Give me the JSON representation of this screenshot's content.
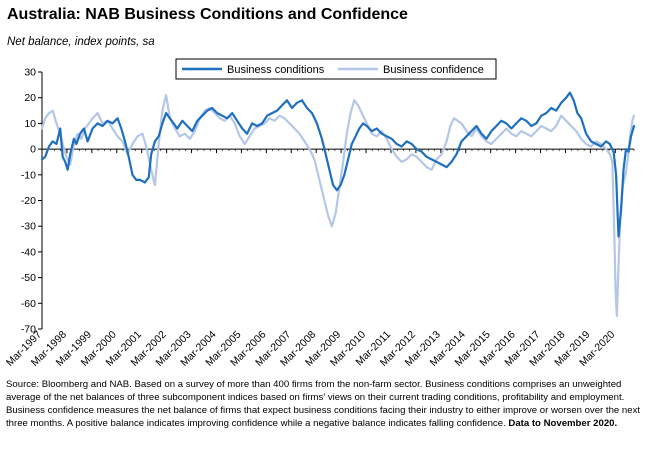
{
  "title": "Australia: NAB Business Conditions and Confidence",
  "subtitle": "Net balance, index points, sa",
  "source": {
    "text": "Source: Bloomberg and NAB. Based on a survey of more than 400 firms from the non-farm sector.  Business conditions comprises an unweighted average of the net balances of three subcomponent indices based on firms' views on their current trading conditions, profitability and employment. Business confidence measures the net balance of firms that expect business conditions facing their industry to either improve or worsen over the next three months.  A positive balance indicates improving confidence while a negative balance indicates falling confidence.",
    "bold": "Data to November 2020."
  },
  "colors": {
    "conditions": "#1f6fbf",
    "confidence": "#b4c7e7",
    "axis": "#000000",
    "gridline": "#000000"
  },
  "chart_data": {
    "type": "line",
    "title": "Australia: NAB Business Conditions and Confidence",
    "ylabel": "Net balance, index points, sa",
    "ylim": [
      -70,
      30
    ],
    "yticks": [
      30,
      20,
      10,
      0,
      -10,
      -20,
      -30,
      -40,
      -50,
      -60,
      -70
    ],
    "xlim": [
      1997.17,
      2020.92
    ],
    "xticks": [
      "Mar-1997",
      "Mar-1998",
      "Mar-1999",
      "Mar-2000",
      "Mar-2001",
      "Mar-2002",
      "Mar-2003",
      "Mar-2004",
      "Mar-2005",
      "Mar-2006",
      "Mar-2007",
      "Mar-2008",
      "Mar-2009",
      "Mar-2010",
      "Mar-2011",
      "Mar-2012",
      "Mar-2013",
      "Mar-2014",
      "Mar-2015",
      "Mar-2016",
      "Mar-2017",
      "Mar-2018",
      "Mar-2019",
      "Mar-2020"
    ],
    "legend_position": "top-center",
    "grid": false,
    "series": [
      {
        "name": "Business conditions",
        "points": [
          [
            1997.17,
            -4
          ],
          [
            1997.3,
            -3
          ],
          [
            1997.45,
            1
          ],
          [
            1997.6,
            3
          ],
          [
            1997.75,
            2
          ],
          [
            1997.9,
            8
          ],
          [
            1998.0,
            -3
          ],
          [
            1998.1,
            -5
          ],
          [
            1998.2,
            -8
          ],
          [
            1998.3,
            -2
          ],
          [
            1998.45,
            4
          ],
          [
            1998.55,
            2
          ],
          [
            1998.7,
            6
          ],
          [
            1998.85,
            8
          ],
          [
            1999.0,
            3
          ],
          [
            1999.2,
            8
          ],
          [
            1999.4,
            10
          ],
          [
            1999.6,
            9
          ],
          [
            1999.8,
            11
          ],
          [
            2000.0,
            10
          ],
          [
            2000.2,
            12
          ],
          [
            2000.35,
            8
          ],
          [
            2000.5,
            3
          ],
          [
            2000.65,
            -3
          ],
          [
            2000.8,
            -10
          ],
          [
            2000.95,
            -12
          ],
          [
            2001.1,
            -12
          ],
          [
            2001.3,
            -13
          ],
          [
            2001.45,
            -11
          ],
          [
            2001.55,
            -2
          ],
          [
            2001.7,
            3
          ],
          [
            2001.85,
            5
          ],
          [
            2002.0,
            10
          ],
          [
            2002.15,
            14
          ],
          [
            2002.3,
            12
          ],
          [
            2002.45,
            10
          ],
          [
            2002.6,
            8
          ],
          [
            2002.8,
            11
          ],
          [
            2003.0,
            9
          ],
          [
            2003.2,
            7
          ],
          [
            2003.4,
            11
          ],
          [
            2003.6,
            13
          ],
          [
            2003.8,
            15
          ],
          [
            2004.0,
            16
          ],
          [
            2004.2,
            14
          ],
          [
            2004.4,
            13
          ],
          [
            2004.6,
            12
          ],
          [
            2004.8,
            14
          ],
          [
            2005.0,
            11
          ],
          [
            2005.2,
            8
          ],
          [
            2005.4,
            6
          ],
          [
            2005.6,
            10
          ],
          [
            2005.8,
            9
          ],
          [
            2006.0,
            10
          ],
          [
            2006.2,
            13
          ],
          [
            2006.4,
            14
          ],
          [
            2006.6,
            15
          ],
          [
            2006.8,
            17
          ],
          [
            2007.0,
            19
          ],
          [
            2007.2,
            16
          ],
          [
            2007.4,
            18
          ],
          [
            2007.6,
            19
          ],
          [
            2007.8,
            16
          ],
          [
            2008.0,
            14
          ],
          [
            2008.2,
            10
          ],
          [
            2008.4,
            4
          ],
          [
            2008.55,
            -2
          ],
          [
            2008.7,
            -8
          ],
          [
            2008.85,
            -14
          ],
          [
            2009.0,
            -16
          ],
          [
            2009.15,
            -14
          ],
          [
            2009.3,
            -10
          ],
          [
            2009.45,
            -4
          ],
          [
            2009.6,
            2
          ],
          [
            2009.75,
            5
          ],
          [
            2009.9,
            8
          ],
          [
            2010.05,
            10
          ],
          [
            2010.2,
            9
          ],
          [
            2010.4,
            7
          ],
          [
            2010.6,
            8
          ],
          [
            2010.8,
            6
          ],
          [
            2011.0,
            5
          ],
          [
            2011.2,
            4
          ],
          [
            2011.4,
            2
          ],
          [
            2011.6,
            1
          ],
          [
            2011.8,
            3
          ],
          [
            2012.0,
            2
          ],
          [
            2012.2,
            0
          ],
          [
            2012.4,
            -1
          ],
          [
            2012.6,
            -3
          ],
          [
            2012.8,
            -4
          ],
          [
            2013.0,
            -5
          ],
          [
            2013.2,
            -6
          ],
          [
            2013.4,
            -7
          ],
          [
            2013.6,
            -5
          ],
          [
            2013.8,
            -2
          ],
          [
            2014.0,
            3
          ],
          [
            2014.2,
            5
          ],
          [
            2014.4,
            7
          ],
          [
            2014.6,
            9
          ],
          [
            2014.8,
            6
          ],
          [
            2015.0,
            4
          ],
          [
            2015.2,
            7
          ],
          [
            2015.4,
            9
          ],
          [
            2015.6,
            11
          ],
          [
            2015.8,
            10
          ],
          [
            2016.0,
            8
          ],
          [
            2016.2,
            10
          ],
          [
            2016.4,
            12
          ],
          [
            2016.6,
            11
          ],
          [
            2016.8,
            9
          ],
          [
            2017.0,
            10
          ],
          [
            2017.2,
            13
          ],
          [
            2017.4,
            14
          ],
          [
            2017.6,
            16
          ],
          [
            2017.8,
            15
          ],
          [
            2018.0,
            18
          ],
          [
            2018.2,
            20
          ],
          [
            2018.35,
            22
          ],
          [
            2018.5,
            19
          ],
          [
            2018.65,
            14
          ],
          [
            2018.8,
            12
          ],
          [
            2019.0,
            6
          ],
          [
            2019.2,
            3
          ],
          [
            2019.4,
            2
          ],
          [
            2019.6,
            1
          ],
          [
            2019.8,
            3
          ],
          [
            2019.95,
            2
          ],
          [
            2020.1,
            -1
          ],
          [
            2020.2,
            -10
          ],
          [
            2020.3,
            -34
          ],
          [
            2020.4,
            -24
          ],
          [
            2020.5,
            -8
          ],
          [
            2020.6,
            0
          ],
          [
            2020.7,
            -1
          ],
          [
            2020.8,
            5
          ],
          [
            2020.92,
            9
          ]
        ]
      },
      {
        "name": "Business confidence",
        "points": [
          [
            1997.17,
            8
          ],
          [
            1997.3,
            12
          ],
          [
            1997.45,
            14
          ],
          [
            1997.6,
            15
          ],
          [
            1997.75,
            10
          ],
          [
            1997.9,
            6
          ],
          [
            1998.0,
            2
          ],
          [
            1998.15,
            -3
          ],
          [
            1998.3,
            -6
          ],
          [
            1998.45,
            2
          ],
          [
            1998.6,
            6
          ],
          [
            1998.75,
            4
          ],
          [
            1998.9,
            8
          ],
          [
            1999.05,
            10
          ],
          [
            1999.2,
            12
          ],
          [
            1999.4,
            14
          ],
          [
            1999.6,
            10
          ],
          [
            1999.8,
            11
          ],
          [
            2000.0,
            8
          ],
          [
            2000.2,
            5
          ],
          [
            2000.4,
            3
          ],
          [
            2000.6,
            -2
          ],
          [
            2000.8,
            2
          ],
          [
            2001.0,
            5
          ],
          [
            2001.2,
            6
          ],
          [
            2001.35,
            1
          ],
          [
            2001.55,
            -8
          ],
          [
            2001.7,
            -14
          ],
          [
            2001.85,
            2
          ],
          [
            2002.0,
            15
          ],
          [
            2002.15,
            21
          ],
          [
            2002.3,
            12
          ],
          [
            2002.5,
            8
          ],
          [
            2002.7,
            5
          ],
          [
            2002.9,
            6
          ],
          [
            2003.1,
            4
          ],
          [
            2003.3,
            7
          ],
          [
            2003.5,
            12
          ],
          [
            2003.7,
            15
          ],
          [
            2003.9,
            16
          ],
          [
            2004.1,
            14
          ],
          [
            2004.3,
            12
          ],
          [
            2004.5,
            11
          ],
          [
            2004.7,
            13
          ],
          [
            2004.9,
            10
          ],
          [
            2005.1,
            5
          ],
          [
            2005.3,
            2
          ],
          [
            2005.5,
            5
          ],
          [
            2005.7,
            8
          ],
          [
            2005.9,
            9
          ],
          [
            2006.1,
            10
          ],
          [
            2006.3,
            12
          ],
          [
            2006.5,
            11
          ],
          [
            2006.7,
            13
          ],
          [
            2006.9,
            12
          ],
          [
            2007.1,
            10
          ],
          [
            2007.3,
            8
          ],
          [
            2007.5,
            6
          ],
          [
            2007.7,
            3
          ],
          [
            2007.9,
            0
          ],
          [
            2008.1,
            -4
          ],
          [
            2008.3,
            -12
          ],
          [
            2008.5,
            -20
          ],
          [
            2008.65,
            -26
          ],
          [
            2008.8,
            -30
          ],
          [
            2008.95,
            -25
          ],
          [
            2009.1,
            -15
          ],
          [
            2009.25,
            -5
          ],
          [
            2009.4,
            6
          ],
          [
            2009.55,
            14
          ],
          [
            2009.7,
            19
          ],
          [
            2009.85,
            17
          ],
          [
            2010.0,
            14
          ],
          [
            2010.2,
            10
          ],
          [
            2010.4,
            6
          ],
          [
            2010.6,
            5
          ],
          [
            2010.8,
            7
          ],
          [
            2011.0,
            4
          ],
          [
            2011.2,
            0
          ],
          [
            2011.4,
            -3
          ],
          [
            2011.6,
            -5
          ],
          [
            2011.8,
            -4
          ],
          [
            2012.0,
            -2
          ],
          [
            2012.2,
            -3
          ],
          [
            2012.4,
            -5
          ],
          [
            2012.6,
            -7
          ],
          [
            2012.8,
            -8
          ],
          [
            2013.0,
            -4
          ],
          [
            2013.2,
            -2
          ],
          [
            2013.4,
            3
          ],
          [
            2013.55,
            9
          ],
          [
            2013.7,
            12
          ],
          [
            2013.85,
            11
          ],
          [
            2014.0,
            10
          ],
          [
            2014.2,
            7
          ],
          [
            2014.4,
            5
          ],
          [
            2014.6,
            8
          ],
          [
            2014.8,
            5
          ],
          [
            2015.0,
            3
          ],
          [
            2015.2,
            2
          ],
          [
            2015.4,
            4
          ],
          [
            2015.6,
            6
          ],
          [
            2015.8,
            8
          ],
          [
            2016.0,
            6
          ],
          [
            2016.2,
            5
          ],
          [
            2016.4,
            7
          ],
          [
            2016.6,
            6
          ],
          [
            2016.8,
            5
          ],
          [
            2017.0,
            7
          ],
          [
            2017.2,
            9
          ],
          [
            2017.4,
            8
          ],
          [
            2017.6,
            7
          ],
          [
            2017.8,
            9
          ],
          [
            2018.0,
            13
          ],
          [
            2018.2,
            11
          ],
          [
            2018.4,
            9
          ],
          [
            2018.6,
            7
          ],
          [
            2018.8,
            4
          ],
          [
            2019.0,
            2
          ],
          [
            2019.2,
            1
          ],
          [
            2019.4,
            3
          ],
          [
            2019.6,
            2
          ],
          [
            2019.8,
            0
          ],
          [
            2019.95,
            -2
          ],
          [
            2020.05,
            -5
          ],
          [
            2020.12,
            -30
          ],
          [
            2020.18,
            -55
          ],
          [
            2020.23,
            -65
          ],
          [
            2020.3,
            -46
          ],
          [
            2020.38,
            -25
          ],
          [
            2020.48,
            -14
          ],
          [
            2020.58,
            -10
          ],
          [
            2020.68,
            -3
          ],
          [
            2020.78,
            6
          ],
          [
            2020.85,
            11
          ],
          [
            2020.92,
            13
          ]
        ]
      }
    ]
  }
}
